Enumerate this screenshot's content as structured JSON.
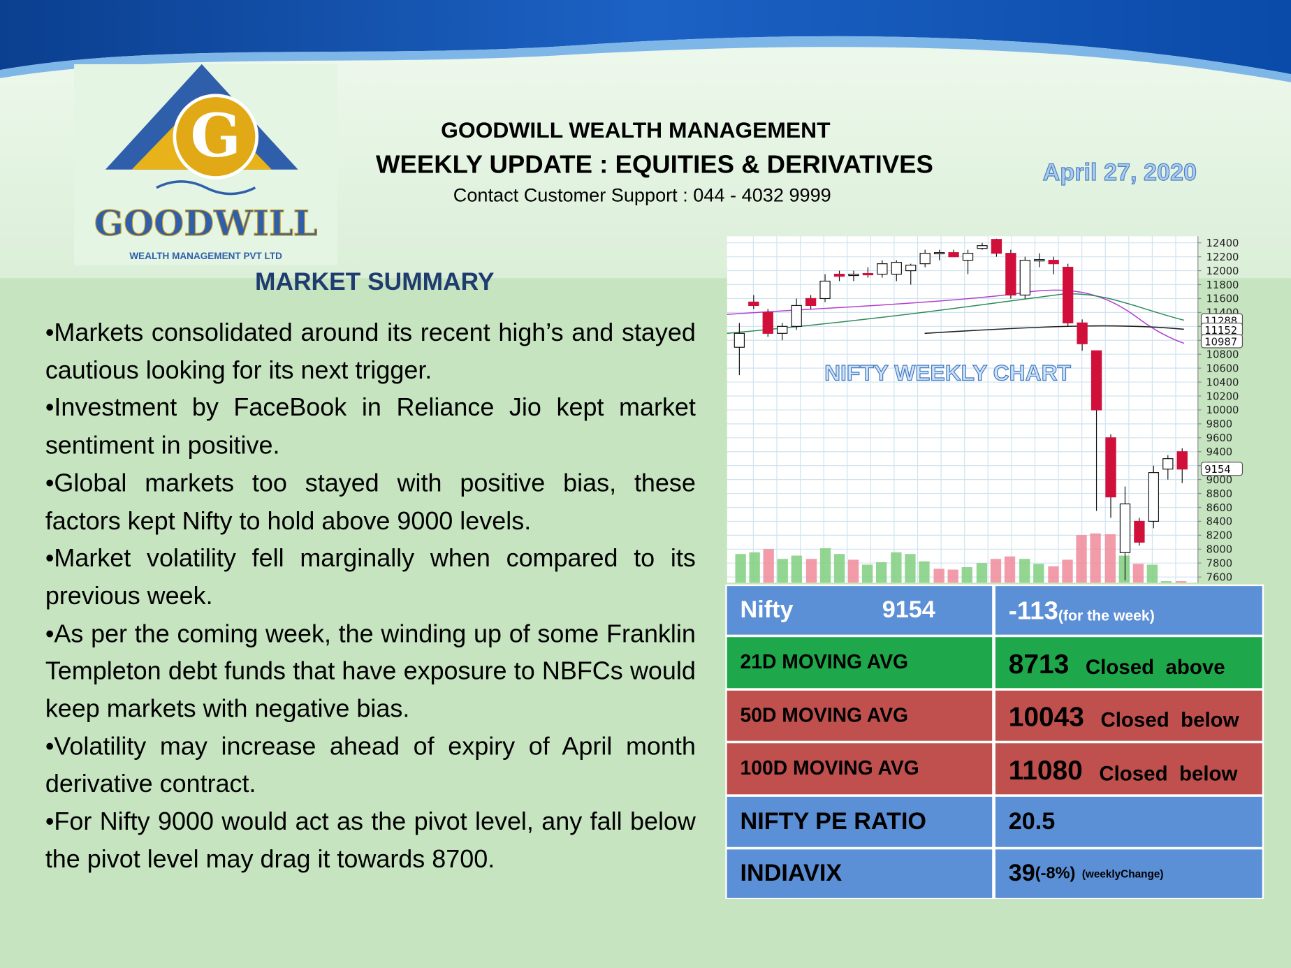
{
  "header": {
    "company": "GOODWILL WEALTH MANAGEMENT",
    "title": "WEEKLY UPDATE : EQUITIES & DERIVATIVES",
    "contact": "Contact Customer Support : 044 - 4032 9999",
    "date": "April 27, 2020"
  },
  "logo": {
    "letter": "G",
    "name": "GOODWILL",
    "subtitle": "WEALTH MANAGEMENT PVT LTD"
  },
  "market_summary": {
    "heading": "MARKET SUMMARY",
    "points": [
      "•Markets consolidated around its recent high’s and stayed cautious looking for its next trigger.",
      "•Investment by FaceBook in Reliance Jio kept market sentiment in positive.",
      "•Global markets too stayed with positive bias, these factors kept Nifty to hold above 9000 levels.",
      "•Market volatility fell marginally when compared to its previous week.",
      "•As per the coming week, the winding up of some Franklin Templeton debt funds that have exposure to NBFCs would keep markets with negative bias.",
      "•Volatility may increase ahead of expiry of April month derivative contract.",
      "•For Nifty 9000 would act as the pivot level, any fall below the pivot level may drag it towards 8700."
    ]
  },
  "chart_data": {
    "type": "candlestick",
    "title": "NIFTY WEEKLY CHART",
    "ylim": [
      7517,
      12495
    ],
    "yticks": [
      7600,
      7800,
      8000,
      8200,
      8400,
      8600,
      8800,
      9000,
      9200,
      9400,
      9600,
      9800,
      10000,
      10200,
      10400,
      10600,
      10800,
      11000,
      11200,
      11400,
      11600,
      11800,
      12000,
      12200,
      12400
    ],
    "grid": true,
    "up_color": "#ffffff",
    "down_color": "#d0103a",
    "open": [
      10900,
      11550,
      11400,
      11100,
      11200,
      11600,
      11600,
      11950,
      11930,
      11960,
      11950,
      11950,
      12000,
      12100,
      12250,
      12260,
      12150,
      12320,
      12450,
      12250,
      11650,
      12140,
      12150,
      12050,
      11250,
      10850,
      9600,
      7950,
      8400,
      8400,
      9150,
      9400
    ],
    "high": [
      11250,
      11650,
      11450,
      11250,
      11600,
      11650,
      11950,
      12000,
      12000,
      12050,
      12150,
      12150,
      12100,
      12300,
      12300,
      12300,
      12300,
      12400,
      12460,
      12300,
      12200,
      12250,
      12200,
      12100,
      11300,
      10850,
      9650,
      8900,
      8450,
      9200,
      9350,
      9450
    ],
    "low": [
      10500,
      11450,
      11050,
      11000,
      11150,
      11450,
      11550,
      11850,
      11850,
      11900,
      11900,
      11850,
      11800,
      12050,
      12150,
      12200,
      11950,
      12300,
      12200,
      11600,
      11600,
      12050,
      11950,
      11200,
      10850,
      8550,
      8450,
      7550,
      8050,
      8300,
      9000,
      8950
    ],
    "close": [
      11100,
      11500,
      11100,
      11200,
      11500,
      11500,
      11850,
      11920,
      11950,
      11940,
      12100,
      12120,
      12080,
      12250,
      12260,
      12200,
      12250,
      12360,
      12250,
      11650,
      12150,
      12160,
      12100,
      11250,
      10950,
      10000,
      8750,
      8650,
      8100,
      9100,
      9300,
      9150
    ],
    "price_labels": [
      11288,
      11152,
      10987,
      9154
    ]
  },
  "table": {
    "rows": [
      {
        "label": "Nifty",
        "value": 9154,
        "change": -113,
        "note": "(for the week)"
      },
      {
        "label": "21D MOVING AVG",
        "value": 8713,
        "note": "Closed  above"
      },
      {
        "label": "50D MOVING AVG",
        "value": 10043,
        "note": "Closed  below"
      },
      {
        "label": "100D MOVING AVG",
        "value": 11080,
        "note": "Closed  below"
      },
      {
        "label": "NIFTY PE RATIO",
        "value": 20.5
      },
      {
        "label": "INDIAVIX",
        "value": 39,
        "change": "(-8%)",
        "note": "(weeklyChange)"
      }
    ]
  }
}
